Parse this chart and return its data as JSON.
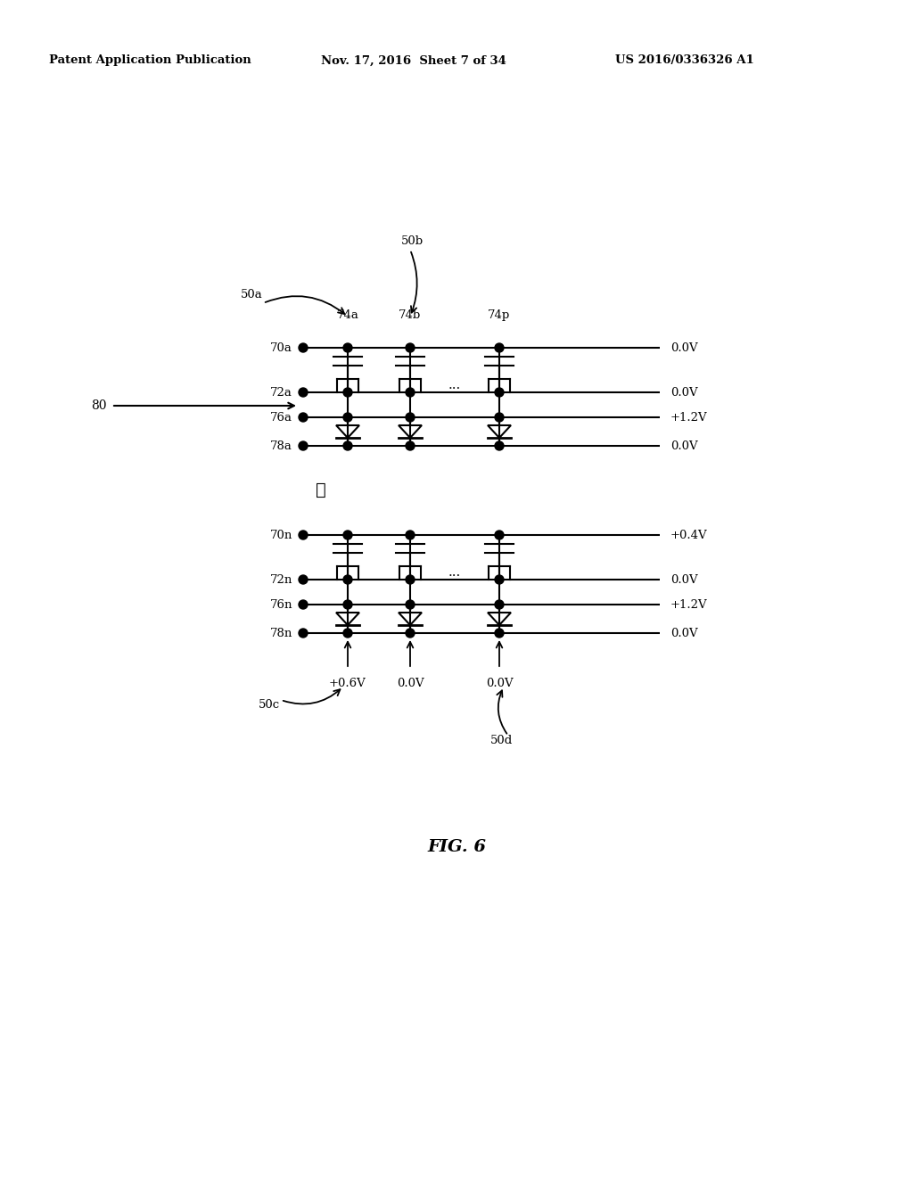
{
  "header_left": "Patent Application Publication",
  "header_mid": "Nov. 17, 2016  Sheet 7 of 34",
  "header_right": "US 2016/0336326 A1",
  "fig_label": "FIG. 6",
  "background": "#ffffff",
  "line_color": "#000000",
  "text_color": "#000000",
  "row_labels_a": [
    "70a",
    "72a",
    "76a",
    "78a"
  ],
  "row_labels_n": [
    "70n",
    "72n",
    "76n",
    "78n"
  ],
  "row_voltages_a": [
    "0.0V",
    "0.0V",
    "+1.2V",
    "0.0V"
  ],
  "row_voltages_n": [
    "+0.4V",
    "0.0V",
    "+1.2V",
    "0.0V"
  ],
  "col_labels": [
    "74a",
    "74b",
    "74p"
  ],
  "col_voltages": [
    "+0.6V",
    "0.0V",
    "0.0V"
  ],
  "label_50a": "50a",
  "label_50b": "50b",
  "label_50c": "50c",
  "label_50d": "50d",
  "label_80": "80"
}
